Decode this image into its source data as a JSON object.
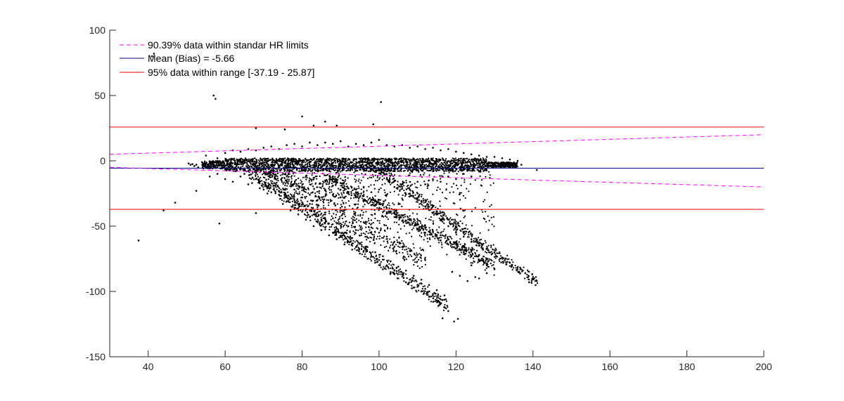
{
  "chart_data": {
    "type": "scatter",
    "title": "",
    "xlabel": "",
    "ylabel": "",
    "xlim": [
      30,
      200
    ],
    "ylim": [
      -150,
      100
    ],
    "x_ticks": [
      40,
      60,
      80,
      100,
      120,
      140,
      160,
      180,
      200
    ],
    "y_ticks": [
      100,
      50,
      0,
      -50,
      -100,
      -150
    ],
    "grid": false,
    "legend_position": "top-left",
    "legend": [
      {
        "label": "90.39% data within standar HR limits",
        "color": "#ff00ff",
        "style": "dashed"
      },
      {
        "label": "Mean (Bias) = -5.66",
        "color": "#000080",
        "style": "solid"
      },
      {
        "label": "95% data within range [-37.19 - 25.87]",
        "color": "#ff0000",
        "style": "solid"
      }
    ],
    "reference_lines": {
      "mean_bias": -5.66,
      "loa_upper": 25.87,
      "loa_lower": -37.19,
      "hr_limit_upper": {
        "x": [
          30,
          200
        ],
        "y": [
          5.0,
          20.0
        ]
      },
      "hr_limit_lower": {
        "x": [
          30,
          200
        ],
        "y": [
          -5.0,
          -20.0
        ]
      }
    },
    "points": [
      [
        37.5,
        -61
      ],
      [
        44,
        -38
      ],
      [
        47,
        -32
      ],
      [
        41,
        80
      ],
      [
        41.5,
        82
      ],
      [
        52.5,
        -23
      ],
      [
        57,
        50
      ],
      [
        57.5,
        47.5
      ],
      [
        58.5,
        -48
      ],
      [
        68,
        25
      ],
      [
        68,
        -40
      ],
      [
        75.5,
        24
      ],
      [
        80,
        34
      ],
      [
        83,
        27
      ],
      [
        86,
        30
      ],
      [
        89,
        27
      ],
      [
        98.5,
        28
      ],
      [
        100.5,
        45
      ],
      [
        119.5,
        -123
      ],
      [
        120.5,
        -121
      ],
      [
        116.5,
        -120.5
      ],
      [
        141,
        -7
      ],
      [
        50.5,
        -2
      ],
      [
        51,
        -3
      ],
      [
        51.5,
        -2.5
      ],
      [
        52,
        -4
      ],
      [
        52.5,
        -3
      ],
      [
        53,
        -5
      ],
      [
        54,
        -1
      ],
      [
        55,
        4
      ],
      [
        56,
        -1
      ],
      [
        58,
        2
      ],
      [
        60,
        6
      ],
      [
        62,
        8
      ],
      [
        64,
        7
      ],
      [
        66,
        9
      ],
      [
        68,
        8
      ],
      [
        70,
        10
      ],
      [
        72,
        11
      ],
      [
        74,
        9
      ],
      [
        76,
        12
      ],
      [
        78,
        13
      ],
      [
        80,
        11
      ],
      [
        82,
        14
      ],
      [
        84,
        12
      ],
      [
        86,
        14
      ],
      [
        88,
        13
      ],
      [
        90,
        15
      ],
      [
        92,
        11
      ],
      [
        94,
        13
      ],
      [
        96,
        12
      ],
      [
        98,
        14
      ],
      [
        100,
        16
      ],
      [
        102,
        12
      ],
      [
        104,
        11
      ],
      [
        106,
        12
      ],
      [
        108,
        10
      ],
      [
        110,
        11
      ],
      [
        112,
        9
      ],
      [
        114,
        10
      ],
      [
        116,
        8
      ],
      [
        118,
        9
      ],
      [
        120,
        7
      ],
      [
        122,
        6
      ],
      [
        124,
        5
      ],
      [
        126,
        4
      ],
      [
        128,
        3
      ],
      [
        130,
        3
      ],
      [
        132,
        2
      ],
      [
        134,
        1
      ],
      [
        136,
        0
      ],
      [
        137,
        -3
      ],
      [
        56,
        -12
      ],
      [
        58,
        -10
      ],
      [
        60,
        -14
      ],
      [
        62,
        -16
      ],
      [
        64,
        -12
      ],
      [
        66,
        -18
      ],
      [
        68,
        -14
      ],
      [
        70,
        -22
      ],
      [
        72,
        -24
      ],
      [
        74,
        -26
      ],
      [
        76,
        -28
      ],
      [
        78,
        -30
      ],
      [
        80,
        -20
      ],
      [
        82,
        -26
      ],
      [
        84,
        -30
      ],
      [
        86,
        -22
      ],
      [
        88,
        -26
      ],
      [
        90,
        -28
      ],
      [
        92,
        -24
      ],
      [
        94,
        -22
      ],
      [
        96,
        -20
      ],
      [
        98,
        -24
      ],
      [
        100,
        -22
      ],
      [
        102,
        -26
      ],
      [
        104,
        -20
      ],
      [
        106,
        -18
      ],
      [
        108,
        -22
      ],
      [
        110,
        -16
      ],
      [
        112,
        -18
      ],
      [
        114,
        -14
      ],
      [
        116,
        -16
      ],
      [
        118,
        -12
      ],
      [
        120,
        -14
      ],
      [
        122,
        -10
      ],
      [
        124,
        -12
      ],
      [
        126,
        -8
      ],
      [
        65,
        -10
      ],
      [
        67,
        -17
      ],
      [
        69,
        -21
      ],
      [
        71,
        -25
      ],
      [
        73,
        -19
      ],
      [
        75,
        -33
      ],
      [
        77,
        -38
      ],
      [
        79,
        -41
      ],
      [
        81,
        -45
      ],
      [
        83,
        -50
      ],
      [
        85,
        -53
      ],
      [
        87,
        -57
      ],
      [
        89,
        -60
      ],
      [
        91,
        -64
      ],
      [
        93,
        -68
      ],
      [
        95,
        -71
      ],
      [
        97,
        -75
      ],
      [
        99,
        -78
      ],
      [
        101,
        -83
      ],
      [
        103,
        -86
      ],
      [
        105,
        -90
      ],
      [
        107,
        -93
      ],
      [
        109,
        -97
      ],
      [
        111,
        -100
      ],
      [
        113,
        -104
      ],
      [
        115,
        -107
      ],
      [
        117,
        -112
      ],
      [
        118,
        -115
      ],
      [
        76,
        -31
      ],
      [
        78,
        -36
      ],
      [
        80,
        -39
      ],
      [
        82,
        -43
      ],
      [
        84,
        -47
      ],
      [
        86,
        -51
      ],
      [
        88,
        -55
      ],
      [
        90,
        -58
      ],
      [
        92,
        -62
      ],
      [
        94,
        -66
      ],
      [
        96,
        -69
      ],
      [
        98,
        -73
      ],
      [
        100,
        -76
      ],
      [
        102,
        -80
      ],
      [
        104,
        -84
      ],
      [
        106,
        -87
      ],
      [
        108,
        -91
      ],
      [
        110,
        -95
      ],
      [
        112,
        -98
      ],
      [
        114,
        -102
      ],
      [
        116,
        -106
      ],
      [
        77,
        -29
      ],
      [
        79,
        -33
      ],
      [
        81,
        -37
      ],
      [
        83,
        -41
      ],
      [
        85,
        -45
      ],
      [
        87,
        -48
      ],
      [
        89,
        -52
      ],
      [
        91,
        -55
      ],
      [
        93,
        -59
      ],
      [
        95,
        -63
      ],
      [
        97,
        -66
      ],
      [
        99,
        -70
      ],
      [
        101,
        -73
      ],
      [
        103,
        -77
      ],
      [
        105,
        -81
      ],
      [
        107,
        -84
      ],
      [
        109,
        -88
      ],
      [
        111,
        -91
      ],
      [
        113,
        -95
      ],
      [
        115,
        -99
      ],
      [
        117,
        -103
      ],
      [
        86,
        -15
      ],
      [
        88,
        -19
      ],
      [
        90,
        -22
      ],
      [
        92,
        -25
      ],
      [
        94,
        -28
      ],
      [
        96,
        -31
      ],
      [
        98,
        -34
      ],
      [
        100,
        -37
      ],
      [
        102,
        -40
      ],
      [
        104,
        -43
      ],
      [
        106,
        -46
      ],
      [
        108,
        -49
      ],
      [
        110,
        -52
      ],
      [
        112,
        -55
      ],
      [
        114,
        -58
      ],
      [
        116,
        -61
      ],
      [
        118,
        -64
      ],
      [
        120,
        -67
      ],
      [
        122,
        -70
      ],
      [
        124,
        -73
      ],
      [
        126,
        -76
      ],
      [
        128,
        -80
      ],
      [
        130,
        -83
      ],
      [
        88,
        -12
      ],
      [
        90,
        -17
      ],
      [
        92,
        -21
      ],
      [
        94,
        -24
      ],
      [
        96,
        -27
      ],
      [
        98,
        -30
      ],
      [
        100,
        -33
      ],
      [
        102,
        -36
      ],
      [
        104,
        -39
      ],
      [
        106,
        -42
      ],
      [
        108,
        -45
      ],
      [
        110,
        -48
      ],
      [
        112,
        -51
      ],
      [
        114,
        -54
      ],
      [
        116,
        -57
      ],
      [
        118,
        -60
      ],
      [
        120,
        -63
      ],
      [
        122,
        -66
      ],
      [
        124,
        -69
      ],
      [
        126,
        -72
      ],
      [
        128,
        -75
      ],
      [
        102,
        -10
      ],
      [
        104,
        -15
      ],
      [
        106,
        -20
      ],
      [
        108,
        -25
      ],
      [
        110,
        -30
      ],
      [
        112,
        -35
      ],
      [
        114,
        -40
      ],
      [
        116,
        -45
      ],
      [
        118,
        -50
      ],
      [
        120,
        -55
      ],
      [
        122,
        -58
      ],
      [
        124,
        -60
      ],
      [
        126,
        -63
      ],
      [
        128,
        -67
      ],
      [
        130,
        -70
      ],
      [
        132,
        -74
      ],
      [
        134,
        -78
      ],
      [
        136,
        -82
      ],
      [
        138,
        -86
      ],
      [
        140,
        -90
      ],
      [
        139,
        -93
      ],
      [
        141,
        -92
      ],
      [
        110,
        -25
      ],
      [
        112,
        -30
      ],
      [
        114,
        -35
      ],
      [
        116,
        -40
      ],
      [
        118,
        -45
      ],
      [
        120,
        -50
      ],
      [
        122,
        -55
      ],
      [
        124,
        -62
      ],
      [
        126,
        -65
      ],
      [
        127,
        -68
      ],
      [
        125,
        -89
      ],
      [
        123,
        -92
      ],
      [
        121,
        -88
      ],
      [
        119,
        -85
      ],
      [
        126,
        -90
      ],
      [
        128,
        -86
      ],
      [
        124,
        -80
      ],
      [
        78,
        -22
      ],
      [
        80,
        -28
      ],
      [
        82,
        -33
      ],
      [
        84,
        -37
      ],
      [
        86,
        -41
      ],
      [
        88,
        -44
      ],
      [
        90,
        -48
      ],
      [
        92,
        -50
      ],
      [
        94,
        -53
      ],
      [
        96,
        -47
      ],
      [
        98,
        -51
      ],
      [
        100,
        -55
      ],
      [
        102,
        -58
      ],
      [
        104,
        -62
      ],
      [
        106,
        -66
      ],
      [
        108,
        -69
      ],
      [
        110,
        -72
      ],
      [
        112,
        -76
      ]
    ]
  }
}
